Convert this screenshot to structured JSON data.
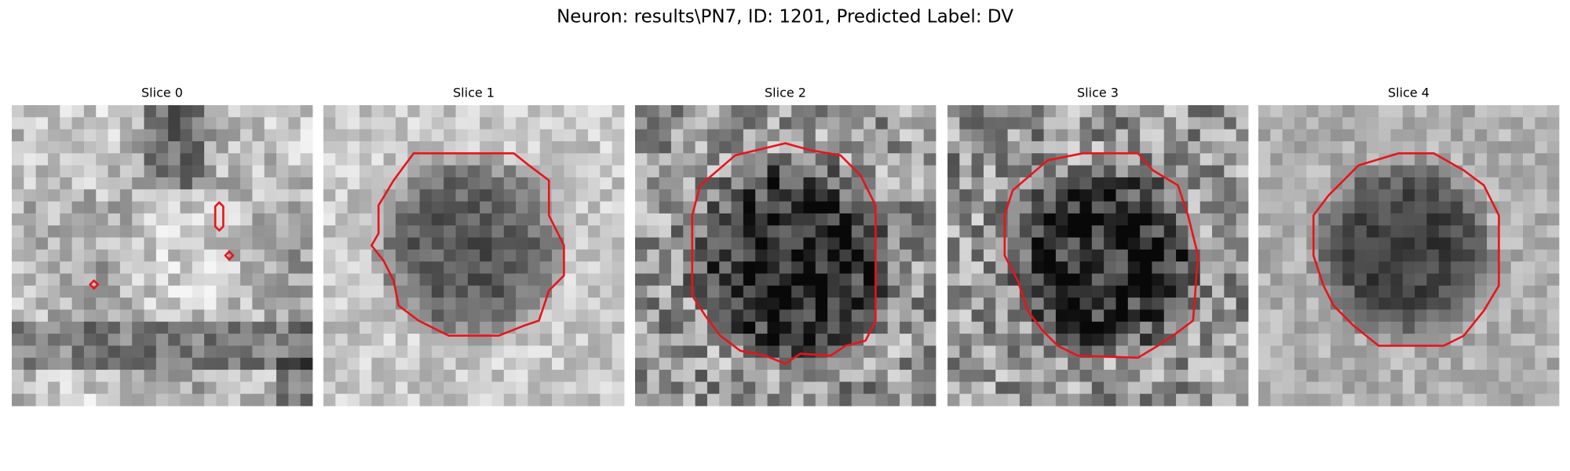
{
  "title": "Neuron: results\\PN7, ID: 1201, Predicted Label: DV",
  "panels": [
    {
      "title": "Slice 0"
    },
    {
      "title": "Slice 1"
    },
    {
      "title": "Slice 2"
    },
    {
      "title": "Slice 3"
    },
    {
      "title": "Slice 4"
    }
  ]
}
